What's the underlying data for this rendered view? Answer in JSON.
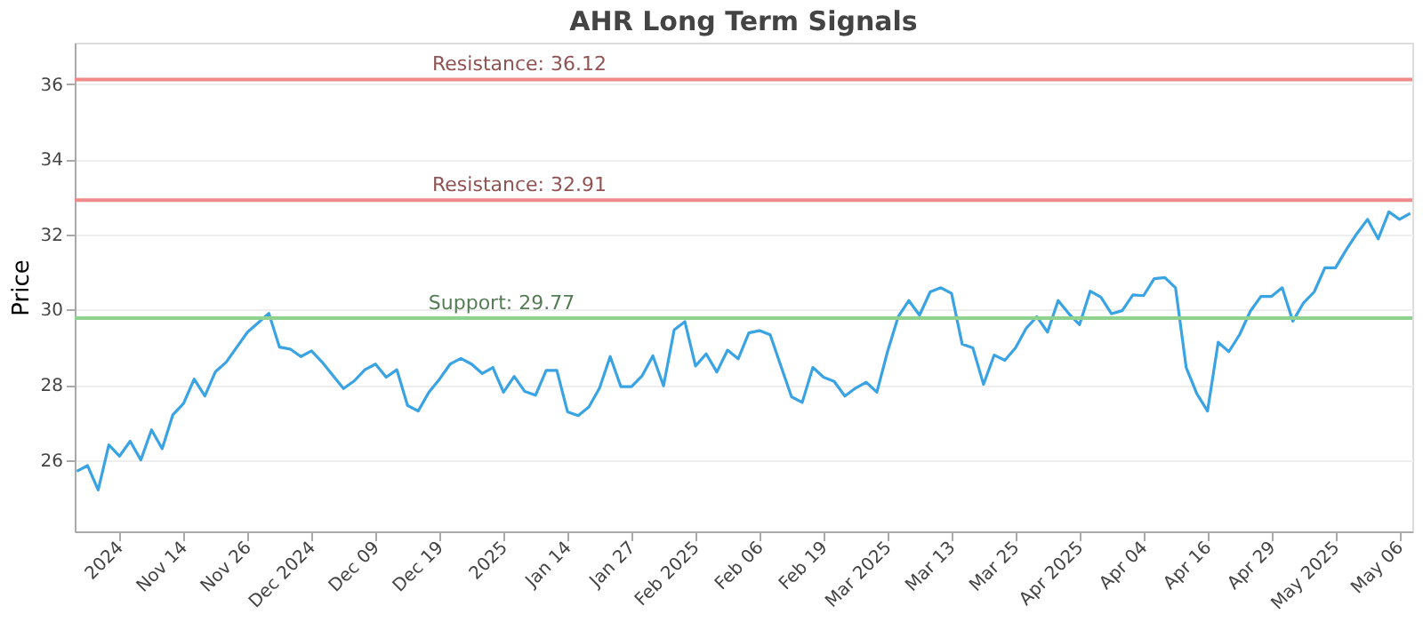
{
  "chart_data": {
    "type": "line",
    "title": "AHR Long Term Signals",
    "ylabel": "Price",
    "categories": [
      null,
      null,
      null,
      null,
      "2024",
      null,
      null,
      null,
      null,
      null,
      "Nov 14",
      null,
      null,
      null,
      null,
      null,
      "Nov 26",
      null,
      null,
      null,
      null,
      null,
      "Dec 2024",
      null,
      null,
      null,
      null,
      null,
      "Dec 09",
      null,
      null,
      null,
      null,
      null,
      "Dec 19",
      null,
      null,
      null,
      null,
      null,
      "2025",
      null,
      null,
      null,
      null,
      null,
      "Jan 14",
      null,
      null,
      null,
      null,
      null,
      "Jan 27",
      null,
      null,
      null,
      null,
      null,
      "Feb 2025",
      null,
      null,
      null,
      null,
      null,
      "Feb 06",
      null,
      null,
      null,
      null,
      null,
      "Feb 19",
      null,
      null,
      null,
      null,
      null,
      "Mar 2025",
      null,
      null,
      null,
      null,
      null,
      "Mar 13",
      null,
      null,
      null,
      null,
      null,
      "Mar 25",
      null,
      null,
      null,
      null,
      null,
      "Apr 2025",
      null,
      null,
      null,
      null,
      null,
      "Apr 04",
      null,
      null,
      null,
      null,
      null,
      "Apr 16",
      null,
      null,
      null,
      null,
      null,
      "Apr 29",
      null,
      null,
      null,
      null,
      null,
      "May 2025",
      null,
      null,
      null,
      null,
      null,
      "May 06",
      null
    ],
    "series": [
      {
        "color": "#3aa3e3",
        "values": [
          25.7,
          25.85,
          25.2,
          26.4,
          26.1,
          26.5,
          26.0,
          26.8,
          26.3,
          27.2,
          27.5,
          28.15,
          27.7,
          28.35,
          28.6,
          29.0,
          29.4,
          29.65,
          29.9,
          29.0,
          28.95,
          28.75,
          28.9,
          28.6,
          28.25,
          27.9,
          28.1,
          28.4,
          28.55,
          28.2,
          28.4,
          27.45,
          27.3,
          27.8,
          28.15,
          28.55,
          28.7,
          28.55,
          28.3,
          28.46,
          27.8,
          28.22,
          27.82,
          27.72,
          28.38,
          28.38,
          27.28,
          27.18,
          27.41,
          27.91,
          28.75,
          27.95,
          27.95,
          28.24,
          28.77,
          27.97,
          29.46,
          29.68,
          28.5,
          28.82,
          28.34,
          28.92,
          28.69,
          29.38,
          29.44,
          29.33,
          28.5,
          27.68,
          27.53,
          28.46,
          28.2,
          28.09,
          27.7,
          27.91,
          28.07,
          27.8,
          28.88,
          29.81,
          30.24,
          29.85,
          30.47,
          30.58,
          30.43,
          29.08,
          28.98,
          28.01,
          28.79,
          28.65,
          28.98,
          29.5,
          29.81,
          29.4,
          30.24,
          29.89,
          29.6,
          30.49,
          30.33,
          29.89,
          29.97,
          30.39,
          30.37,
          30.82,
          30.85,
          30.58,
          28.46,
          27.76,
          27.3,
          29.13,
          28.88,
          29.33,
          29.95,
          30.35,
          30.35,
          30.58,
          29.69,
          30.18,
          30.47,
          31.11,
          31.11,
          31.59,
          32.02,
          32.4,
          31.88,
          32.6,
          32.4,
          32.56
        ]
      }
    ],
    "ylim": [
      24.1,
      37.1
    ],
    "yticks": [
      26,
      28,
      30,
      32,
      34,
      36
    ],
    "ref_lines": [
      {
        "axis": "y",
        "value": 36.12,
        "label": "Resistance: 36.12",
        "color": "#f08a8a"
      },
      {
        "axis": "y",
        "value": 32.91,
        "label": "Resistance: 32.91",
        "color": "#f08a8a"
      },
      {
        "axis": "y",
        "value": 29.77,
        "label": "Support: 29.77",
        "color": "#8fd18f"
      }
    ],
    "grid": "y",
    "legend": false,
    "marker": "none",
    "line_style": "solid"
  }
}
